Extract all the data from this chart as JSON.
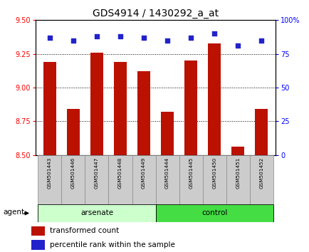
{
  "title": "GDS4914 / 1430292_a_at",
  "samples": [
    "GSM501443",
    "GSM501446",
    "GSM501447",
    "GSM501448",
    "GSM501449",
    "GSM501444",
    "GSM501445",
    "GSM501450",
    "GSM501451",
    "GSM501452"
  ],
  "transformed_count": [
    9.19,
    8.84,
    9.26,
    9.19,
    9.12,
    8.82,
    9.2,
    9.33,
    8.56,
    8.84
  ],
  "percentile_rank": [
    87,
    85,
    88,
    88,
    87,
    85,
    87,
    90,
    81,
    85
  ],
  "ylim_left": [
    8.5,
    9.5
  ],
  "ylim_right": [
    0,
    100
  ],
  "yticks_left": [
    8.5,
    8.75,
    9.0,
    9.25,
    9.5
  ],
  "yticks_right": [
    0,
    25,
    50,
    75,
    100
  ],
  "ytick_labels_right": [
    "0",
    "25",
    "50",
    "75",
    "100%"
  ],
  "hlines": [
    8.75,
    9.0,
    9.25
  ],
  "bar_color": "#bb1100",
  "dot_color": "#2222cc",
  "group1_label": "arsenate",
  "group2_label": "control",
  "group1_indices": [
    0,
    1,
    2,
    3,
    4
  ],
  "group2_indices": [
    5,
    6,
    7,
    8,
    9
  ],
  "group1_color": "#ccffcc",
  "group2_color": "#44dd44",
  "agent_label": "agent",
  "legend_bar_label": "transformed count",
  "legend_dot_label": "percentile rank within the sample",
  "title_fontsize": 10,
  "tick_fontsize": 7,
  "bar_width": 0.55,
  "sample_label_color": "#cccccc",
  "sample_label_border": "#888888"
}
